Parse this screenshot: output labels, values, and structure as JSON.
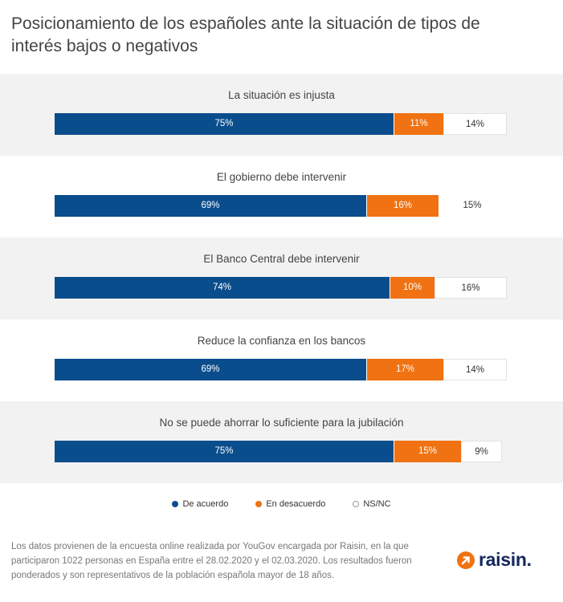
{
  "title": "Posicionamiento de los españoles ante la situación de tipos de interés bajos o negativos",
  "chart_data": {
    "type": "bar",
    "orientation": "horizontal",
    "stacked": true,
    "categories": [
      "La situación es injusta",
      "El gobierno debe intervenir",
      "El Banco Central debe intervenir",
      "Reduce la confianza en los bancos",
      "No se puede ahorrar lo suficiente para la jubilación"
    ],
    "series": [
      {
        "name": "De acuerdo",
        "values": [
          75,
          69,
          74,
          69,
          75
        ],
        "color": "#0a4d8c"
      },
      {
        "name": "En desacuerdo",
        "values": [
          11,
          16,
          10,
          17,
          15
        ],
        "color": "#f07212"
      },
      {
        "name": "NS/NC",
        "values": [
          14,
          15,
          16,
          14,
          9
        ],
        "color": "#ffffff"
      }
    ],
    "unit": "%",
    "legend": [
      "De acuerdo",
      "En desacuerdo",
      "NS/NC"
    ],
    "legend_position": "bottom"
  },
  "footnote": "Los datos provienen de la encuesta online realizada por YouGov encargada por Raisin, en la que participaron 1022 personas en España entre el 28.02.2020 y el 02.03.2020. Los resultados fueron ponderados y son representativos de la población española mayor de 18 años.",
  "logo": {
    "text": "raisin."
  }
}
